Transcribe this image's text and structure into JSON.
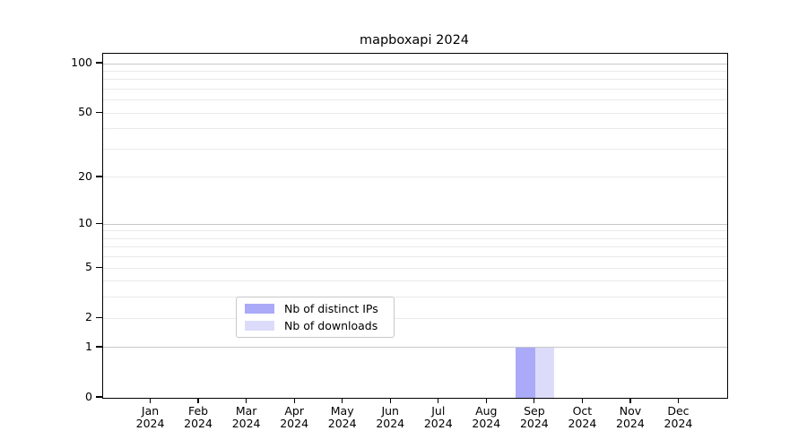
{
  "chart_data": {
    "type": "bar",
    "title": "mapboxapi 2024",
    "categories": [
      "Jan\n2024",
      "Feb\n2024",
      "Mar\n2024",
      "Apr\n2024",
      "May\n2024",
      "Jun\n2024",
      "Jul\n2024",
      "Aug\n2024",
      "Sep\n2024",
      "Oct\n2024",
      "Nov\n2024",
      "Dec\n2024"
    ],
    "series": [
      {
        "name": "Nb of distinct IPs",
        "color": "#aaaaf8",
        "values": [
          0,
          0,
          0,
          0,
          0,
          0,
          0,
          0,
          1,
          0,
          0,
          0
        ]
      },
      {
        "name": "Nb of downloads",
        "color": "#dcdcfa",
        "values": [
          0,
          0,
          0,
          0,
          0,
          0,
          0,
          0,
          1,
          0,
          0,
          0
        ]
      }
    ],
    "xlabel": "",
    "ylabel": "",
    "y_scale": "log1p",
    "ylim": [
      0,
      115
    ],
    "y_major_ticks": [
      0,
      1,
      2,
      5,
      10,
      20,
      50,
      100
    ],
    "y_minor_gridlines": [
      3,
      4,
      6,
      7,
      8,
      9,
      30,
      40,
      60,
      70,
      80,
      90
    ],
    "y_strong_gridlines": [
      1,
      10,
      100
    ],
    "grid": true,
    "legend": {
      "position": "lower center",
      "entries": [
        "Nb of distinct IPs",
        "Nb of downloads"
      ]
    }
  },
  "colors": {
    "background": "#ffffff",
    "axis": "#000000",
    "major_grid": "#c8c8c8",
    "minor_grid": "#eaeaea",
    "legend_border": "#c9c9c9",
    "text": "#000000"
  }
}
